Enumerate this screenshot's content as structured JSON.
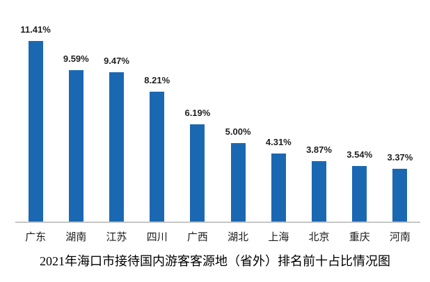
{
  "chart_data": {
    "type": "bar",
    "title": "2021年海口市接待国内游客客源地（省外）排名前十占比情况图",
    "categories": [
      "广东",
      "湖南",
      "江苏",
      "四川",
      "广西",
      "湖北",
      "上海",
      "北京",
      "重庆",
      "河南"
    ],
    "values": [
      11.41,
      9.59,
      9.47,
      8.21,
      6.19,
      5.0,
      4.31,
      3.87,
      3.54,
      3.37
    ],
    "value_labels": [
      "11.41%",
      "9.59%",
      "9.47%",
      "8.21%",
      "6.19%",
      "5.00%",
      "4.31%",
      "3.87%",
      "3.54%",
      "3.37%"
    ],
    "xlabel": "",
    "ylabel": "",
    "ylim": [
      0,
      14
    ],
    "grid": false,
    "legend": false,
    "data_labels": true,
    "unit": "%",
    "colors": {
      "bar": "#1b68b2",
      "axis_line": "#c6c6c6",
      "value_label": "#1f1f1f",
      "category_label": "#1a1a1a",
      "title": "#000000",
      "background": "#ffffff"
    }
  }
}
